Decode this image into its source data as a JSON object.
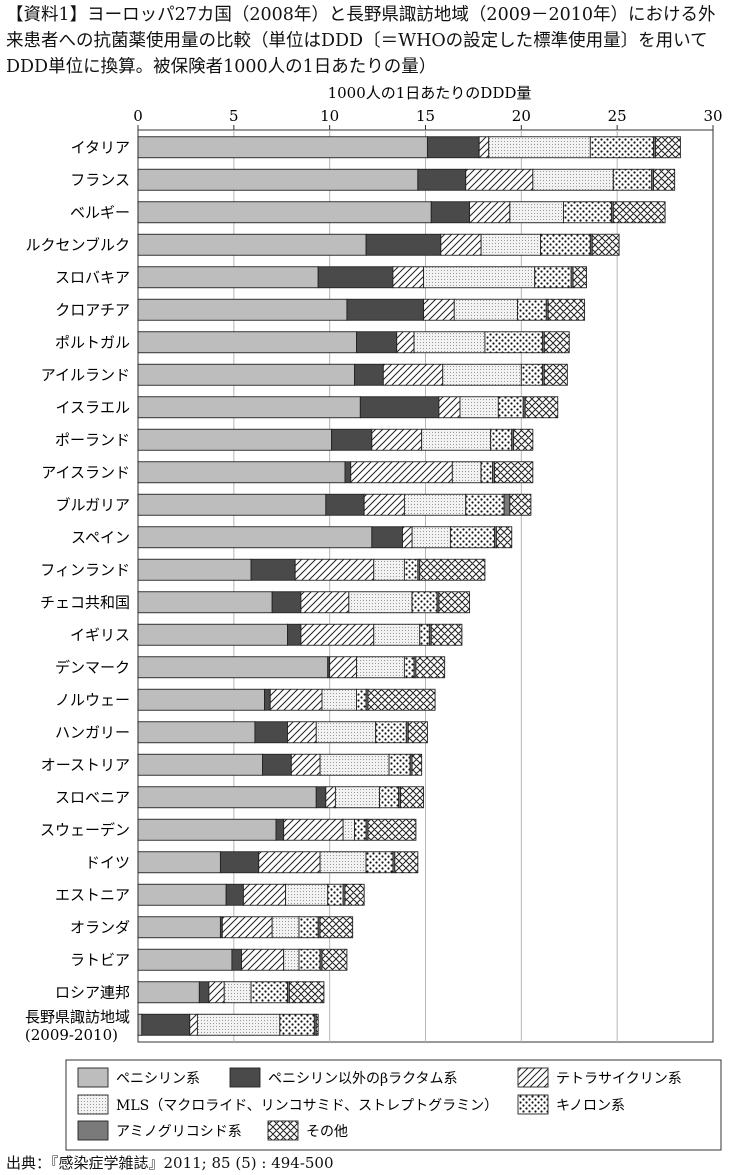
{
  "title": "【資料1】ヨーロッパ27カ国（2008年）と長野県諏訪地域（2009－2010年）における外来患者への抗菌薬使用量の比較（単位はDDD〔＝WHOの設定した標準使用量〕を用いてDDD単位に換算。被保険者1000人の1日あたりの量）",
  "source": "出典：『感染症学雑誌』2011; 85 (5) : 494-500",
  "chart_data": {
    "type": "bar",
    "orientation": "horizontal",
    "stacked": true,
    "xlabel": "1000人の1日あたりのDDD量",
    "xlim": [
      0,
      30
    ],
    "xticks": [
      0,
      5,
      10,
      15,
      20,
      25,
      30
    ],
    "grid": true,
    "legend_position": "bottom",
    "categories": [
      "イタリア",
      "フランス",
      "ベルギー",
      "ルクセンブルク",
      "スロバキア",
      "クロアチア",
      "ポルトガル",
      "アイルランド",
      "イスラエル",
      "ポーランド",
      "アイスランド",
      "ブルガリア",
      "スペイン",
      "フィンランド",
      "チェコ共和国",
      "イギリス",
      "デンマーク",
      "ノルウェー",
      "ハンガリー",
      "オーストリア",
      "スロベニア",
      "スウェーデン",
      "ドイツ",
      "エストニア",
      "オランダ",
      "ラトビア",
      "ロシア連邦",
      "長野県諏訪地域\n(2009-2010)"
    ],
    "series": [
      {
        "name": "ペニシリン系",
        "key": "pen",
        "values": [
          15.1,
          14.6,
          15.3,
          11.9,
          9.4,
          10.9,
          11.4,
          11.3,
          11.6,
          10.1,
          10.8,
          9.8,
          12.2,
          5.9,
          7.0,
          7.8,
          9.9,
          6.6,
          6.1,
          6.5,
          9.3,
          7.2,
          4.3,
          4.6,
          4.3,
          4.9,
          3.2,
          0.2
        ]
      },
      {
        "name": "ペニシリン以外のβラクタム系",
        "key": "beta",
        "values": [
          2.7,
          2.5,
          2.0,
          3.9,
          3.9,
          4.0,
          2.1,
          1.5,
          4.1,
          2.1,
          0.3,
          2.0,
          1.6,
          2.3,
          1.5,
          0.7,
          0.1,
          0.3,
          1.7,
          1.5,
          0.5,
          0.4,
          2.0,
          0.9,
          0.1,
          0.5,
          0.5,
          2.5
        ]
      },
      {
        "name": "テトラサイクリン系",
        "key": "tet",
        "values": [
          0.5,
          3.5,
          2.1,
          2.1,
          1.6,
          1.6,
          0.9,
          3.1,
          1.1,
          2.6,
          5.3,
          2.1,
          0.5,
          4.1,
          2.5,
          3.8,
          1.4,
          2.7,
          1.5,
          1.5,
          0.5,
          3.1,
          3.2,
          2.2,
          2.6,
          2.2,
          0.8,
          0.4
        ]
      },
      {
        "name": "MLS（マクロライド、リンコサミド、ストレプトグラミン）",
        "key": "mls",
        "values": [
          5.3,
          4.2,
          2.8,
          3.1,
          5.8,
          3.3,
          3.7,
          4.1,
          2.0,
          3.6,
          1.5,
          3.2,
          2.0,
          1.6,
          3.3,
          2.4,
          2.5,
          1.8,
          3.1,
          3.6,
          2.3,
          0.6,
          2.4,
          2.2,
          1.4,
          0.8,
          1.4,
          4.3
        ]
      },
      {
        "name": "キノロン系",
        "key": "qui",
        "values": [
          3.3,
          2.0,
          2.5,
          2.6,
          1.9,
          1.5,
          3.0,
          1.1,
          1.3,
          1.1,
          0.6,
          2.0,
          2.3,
          0.7,
          1.3,
          0.5,
          0.5,
          0.5,
          1.6,
          1.1,
          1.0,
          0.6,
          1.4,
          0.8,
          1.0,
          1.1,
          1.9,
          1.8
        ]
      },
      {
        "name": "アミノグリコシド系",
        "key": "ami",
        "values": [
          0.1,
          0.1,
          0.1,
          0.1,
          0.1,
          0.1,
          0.1,
          0.1,
          0.1,
          0.1,
          0.1,
          0.3,
          0.1,
          0.1,
          0.1,
          0.1,
          0.1,
          0.1,
          0.1,
          0.1,
          0.1,
          0.1,
          0.1,
          0.1,
          0.1,
          0.1,
          0.1,
          0.1
        ]
      },
      {
        "name": "その他",
        "key": "oth",
        "values": [
          1.3,
          1.1,
          2.7,
          1.4,
          0.7,
          1.9,
          1.3,
          1.2,
          1.7,
          1.0,
          2.0,
          1.1,
          0.8,
          3.4,
          1.6,
          1.6,
          1.5,
          3.5,
          1.0,
          0.5,
          1.2,
          2.5,
          1.2,
          1.0,
          1.7,
          1.3,
          1.8,
          0.1
        ]
      }
    ]
  }
}
